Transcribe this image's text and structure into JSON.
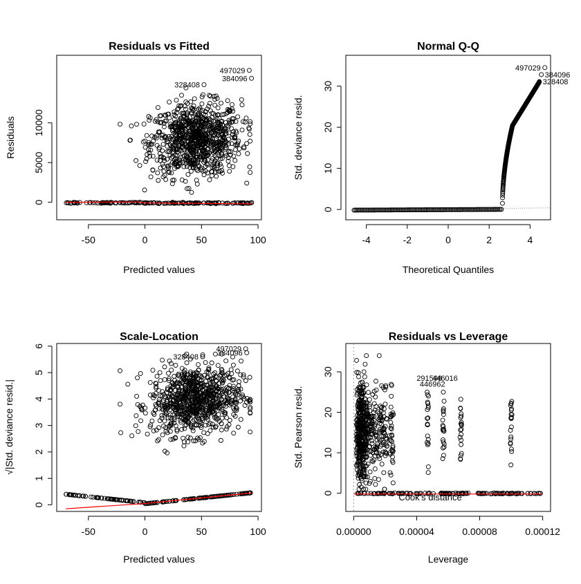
{
  "chart_data": [
    {
      "type": "scatter",
      "title": "Residuals vs Fitted",
      "xlabel": "Predicted values",
      "ylabel": "Residuals",
      "xlim": [
        -78,
        103
      ],
      "ylim": [
        -2200,
        18500
      ],
      "xticks": [
        -50,
        0,
        50,
        100
      ],
      "yticks": [
        0,
        5000,
        10000
      ],
      "labeled_points": [
        {
          "label": "497029",
          "x": 80,
          "y": 16600
        },
        {
          "label": "384096",
          "x": 82,
          "y": 15600
        },
        {
          "label": "328408",
          "x": 40,
          "y": 14800
        }
      ],
      "series": [
        {
          "kind": "main_cloud",
          "x_range": [
            -20,
            95
          ],
          "y_range": [
            0,
            14500
          ]
        },
        {
          "kind": "zero_band",
          "x_range": [
            -70,
            95
          ],
          "y_value": 0
        }
      ],
      "smoother_color": "#ff0000"
    },
    {
      "type": "scatter",
      "title": "Normal Q-Q",
      "xlabel": "Theoretical Quantiles",
      "ylabel": "Std. deviance resid.",
      "xlim": [
        -5.0,
        5.0
      ],
      "ylim": [
        -2.5,
        37.5
      ],
      "xticks": [
        -4,
        -2,
        0,
        2,
        4
      ],
      "yticks": [
        0,
        10,
        20,
        30
      ],
      "labeled_points": [
        {
          "label": "497029",
          "x": 4.72,
          "y": 34.5
        },
        {
          "label": "384096",
          "x": 4.55,
          "y": 32.8
        },
        {
          "label": "328408",
          "x": 4.45,
          "y": 31.1
        }
      ],
      "reference_line": {
        "style": "dotted",
        "color": "#888888"
      }
    },
    {
      "type": "scatter",
      "title": "Scale-Location",
      "xlabel": "Predicted values",
      "ylabel": "√|Std. deviance resid.|",
      "xlim": [
        -78,
        103
      ],
      "ylim": [
        -0.25,
        6.1
      ],
      "xticks": [
        -50,
        0,
        50,
        100
      ],
      "yticks": [
        0,
        1,
        2,
        3,
        4,
        5,
        6
      ],
      "labeled_points": [
        {
          "label": "497029",
          "x": 78,
          "y": 5.9
        },
        {
          "label": "384096",
          "x": 79,
          "y": 5.75
        },
        {
          "label": "328408",
          "x": 40,
          "y": 5.6
        }
      ],
      "smoother_color": "#ff0000"
    },
    {
      "type": "scatter",
      "title": "Residuals vs Leverage",
      "xlabel": "Leverage",
      "ylabel": "Std. Pearson resid.",
      "xlim": [
        -5e-06,
        0.000125
      ],
      "ylim": [
        -4.5,
        37
      ],
      "xtick_labels": [
        "0.00000",
        "0.00004",
        "0.00008",
        "0.00012"
      ],
      "xticks": [
        0.0,
        4e-05,
        8e-05,
        0.00012
      ],
      "yticks": [
        0,
        10,
        20,
        30
      ],
      "labeled_points": [
        {
          "label": "291598",
          "x": 4.8e-05,
          "y": 28.5
        },
        {
          "label": "446016",
          "x": 5.8e-05,
          "y": 28.5
        },
        {
          "label": "446962",
          "x": 5e-05,
          "y": 27.0
        }
      ],
      "annotation": "Cook's distance",
      "smoother_color": "#ff0000"
    }
  ]
}
